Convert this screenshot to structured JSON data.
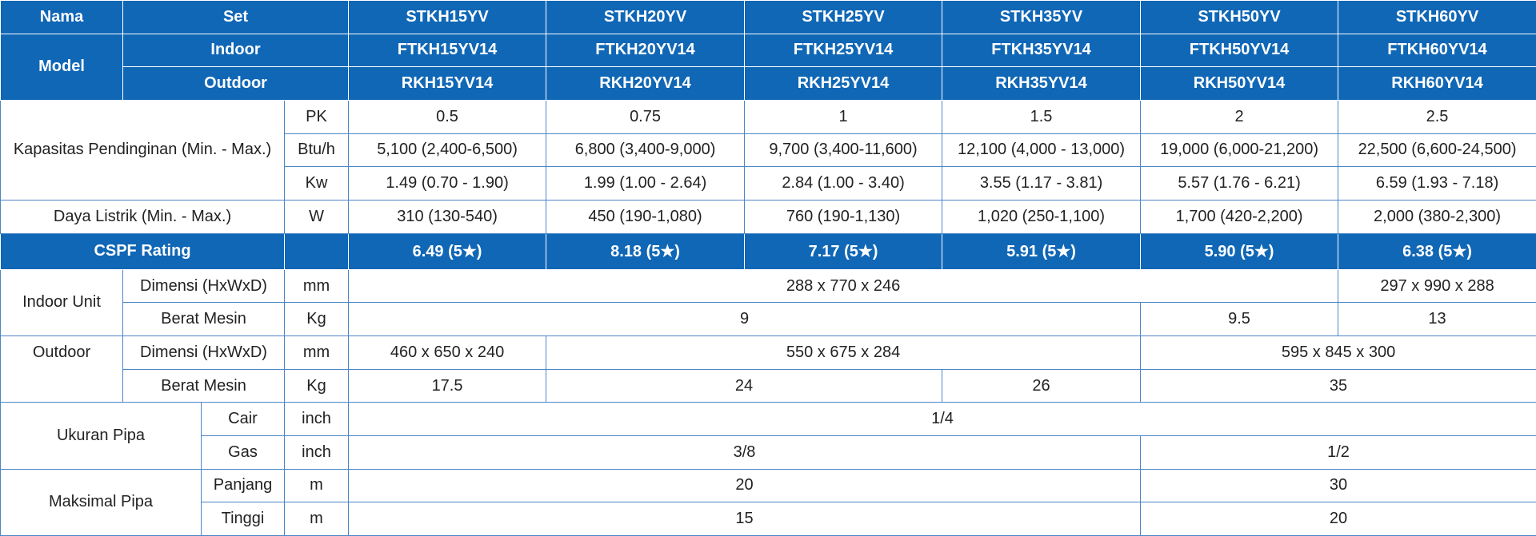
{
  "table": {
    "rows": [
      [
        "Nama",
        "Set",
        "STKH15YV",
        "STKH20YV",
        "STKH25YV",
        "STKH35YV",
        "STKH50YV",
        "STKH60YV"
      ],
      [
        "Model",
        "Indoor",
        "FTKH15YV14",
        "FTKH20YV14",
        "FTKH25YV14",
        "FTKH35YV14",
        "FTKH50YV14",
        "FTKH60YV14"
      ],
      [
        "Outdoor",
        "RKH15YV14",
        "RKH20YV14",
        "RKH25YV14",
        "RKH35YV14",
        "RKH50YV14",
        "RKH60YV14"
      ],
      [
        "Kapasitas Pendinginan (Min. - Max.)",
        "PK",
        "0.5",
        "0.75",
        "1",
        "1.5",
        "2",
        "2.5"
      ],
      [
        "Btu/h",
        "5,100 (2,400-6,500)",
        "6,800 (3,400-9,000)",
        "9,700 (3,400-11,600)",
        "12,100 (4,000 - 13,000)",
        "19,000 (6,000-21,200)",
        "22,500 (6,600-24,500)"
      ],
      [
        "Kw",
        "1.49 (0.70 - 1.90)",
        "1.99 (1.00 - 2.64)",
        "2.84 (1.00 - 3.40)",
        "3.55 (1.17 - 3.81)",
        "5.57 (1.76 - 6.21)",
        "6.59 (1.93 - 7.18)"
      ],
      [
        "Daya Listrik (Min. - Max.)",
        "W",
        "310 (130-540)",
        "450 (190-1,080)",
        "760 (190-1,130)",
        "1,020 (250-1,100)",
        "1,700 (420-2,200)",
        "2,000 (380-2,300)"
      ],
      [
        "CSPF Rating",
        "6.49 (5★)",
        "8.18 (5★)",
        "7.17 (5★)",
        "5.91 (5★)",
        "5.90 (5★)",
        "6.38 (5★)"
      ],
      [
        "Indoor Unit",
        "Dimensi (HxWxD)",
        "mm",
        "288 x 770 x 246",
        "297 x 990 x 288"
      ],
      [
        "Berat Mesin",
        "Kg",
        "9",
        "9.5",
        "13"
      ],
      [
        "Outdoor",
        "Dimensi (HxWxD)",
        "mm",
        "460 x 650 x 240",
        "550 x 675 x 284",
        "595 x 845 x 300"
      ],
      [
        "Berat Mesin",
        "Kg",
        "17.5",
        "24",
        "26",
        "35"
      ],
      [
        "Ukuran Pipa",
        "Cair",
        "inch",
        "1/4"
      ],
      [
        "Gas",
        "inch",
        "3/8",
        "1/2"
      ],
      [
        "Maksimal Pipa",
        "Panjang",
        "m",
        "20",
        "30"
      ],
      [
        "Tinggi",
        "m",
        "15",
        "20"
      ]
    ]
  }
}
